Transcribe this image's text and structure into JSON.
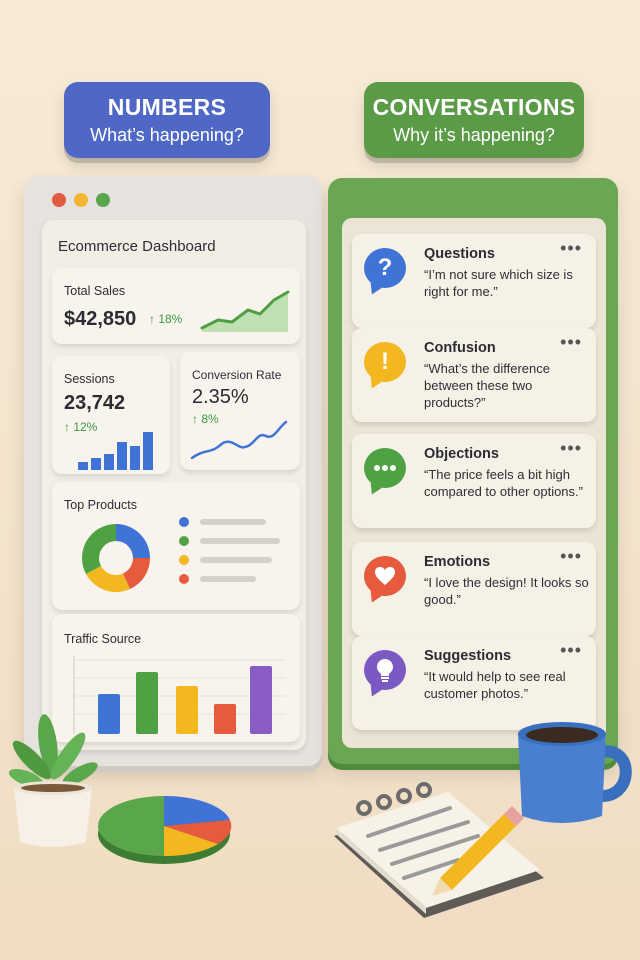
{
  "numbers_header": {
    "title": "NUMBERS",
    "subtitle": "What’s happening?"
  },
  "conversations_header": {
    "title": "CONVERSATIONS",
    "subtitle": "Why it’s happening?"
  },
  "window_dots": [
    "#e35a3f",
    "#f2b632",
    "#5aa64a"
  ],
  "dashboard": {
    "title": "Ecommerce Dashboard",
    "total_sales": {
      "label": "Total Sales",
      "value": "$42,850",
      "change": "↑ 18%"
    },
    "sessions": {
      "label": "Sessions",
      "value": "23,742",
      "change": "↑ 12%"
    },
    "conversion": {
      "label": "Conversion Rate",
      "value": "2.35%",
      "change": "↑ 8%"
    },
    "top_products": {
      "label": "Top Products"
    },
    "traffic_source": {
      "label": "Traffic Source"
    }
  },
  "conversations": [
    {
      "title": "Questions",
      "text": "“I’m not sure which size is right for me.”",
      "icon": "question-mark-icon",
      "color": "#3f73d6"
    },
    {
      "title": "Confusion",
      "text": "“What’s the difference between these two products?”",
      "icon": "exclamation-icon",
      "color": "#f3b81f"
    },
    {
      "title": "Objections",
      "text": "“The price feels a bit high compared to other options.”",
      "icon": "ellipsis-chat-icon",
      "color": "#4fa143"
    },
    {
      "title": "Emotions",
      "text": "“I love the design! It looks so good.”",
      "icon": "heart-icon",
      "color": "#e65a3e"
    },
    {
      "title": "Suggestions",
      "text": "“It would help to see real customer photos.”",
      "icon": "lightbulb-icon",
      "color": "#7b59c2"
    }
  ],
  "more_glyph": "•••",
  "question_glyph": "?",
  "exclamation_glyph": "!"
}
